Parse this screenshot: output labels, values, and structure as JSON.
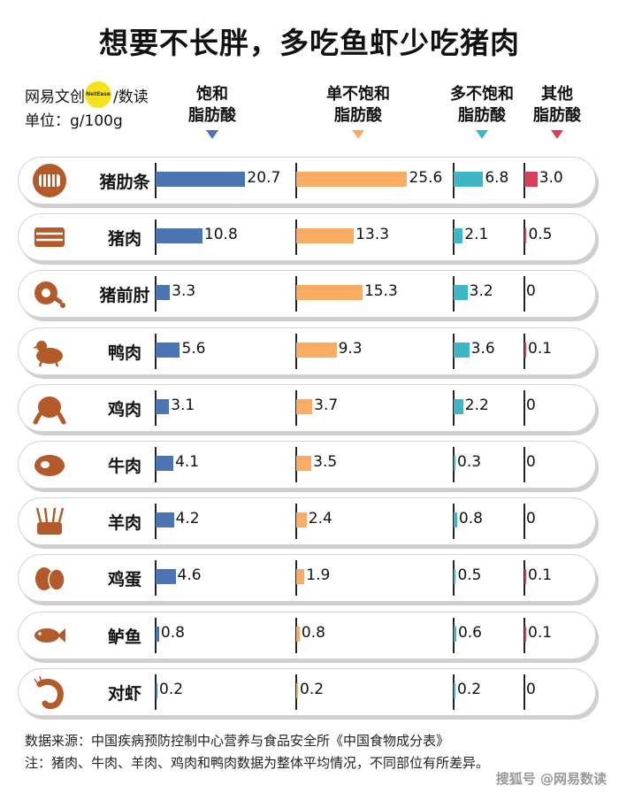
{
  "title": "想要不长胖，多吃鱼虾少吃猪肉",
  "brand": {
    "logo_left": "网易文创",
    "logo_dot": "NetEase",
    "logo_right": "/数读"
  },
  "unit_label": "单位：g/100g",
  "watermark": "搜狐号 @网易数读",
  "colors": {
    "saturated": "#4b74b5",
    "monounsaturated": "#f9ac62",
    "polyunsaturated": "#3fb6c6",
    "other": "#d8405a",
    "icon": "#b35a2a"
  },
  "chart_data": {
    "type": "bar",
    "unit": "g/100g",
    "series": [
      {
        "name": "饱和脂肪酸",
        "values": [
          20.7,
          10.8,
          3.3,
          5.6,
          3.1,
          4.1,
          4.2,
          4.6,
          0.8,
          0.2
        ]
      },
      {
        "name": "单不饱和脂肪酸",
        "values": [
          25.6,
          13.3,
          15.3,
          9.3,
          3.7,
          3.5,
          2.4,
          1.9,
          0.8,
          0.2
        ]
      },
      {
        "name": "多不饱和脂肪酸",
        "values": [
          6.8,
          2.1,
          3.2,
          3.6,
          2.2,
          0.3,
          0.8,
          0.5,
          0.6,
          0.2
        ]
      },
      {
        "name": "其他脂肪酸",
        "values": [
          3.0,
          0.5,
          0,
          0.1,
          0,
          0,
          0,
          0.1,
          0.1,
          0
        ]
      }
    ],
    "categories": [
      "猪肋条",
      "猪肉",
      "猪前肘",
      "鸭肉",
      "鸡肉",
      "牛肉",
      "羊肉",
      "鸡蛋",
      "鲈鱼",
      "对虾"
    ],
    "value_labels": [
      [
        "20.7",
        "25.6",
        "6.8",
        "3.0"
      ],
      [
        "10.8",
        "13.3",
        "2.1",
        "0.5"
      ],
      [
        "3.3",
        "15.3",
        "3.2",
        "0"
      ],
      [
        "5.6",
        "9.3",
        "3.6",
        "0.1"
      ],
      [
        "3.1",
        "3.7",
        "2.2",
        "0"
      ],
      [
        "4.1",
        "3.5",
        "0.3",
        "0"
      ],
      [
        "4.2",
        "2.4",
        "0.8",
        "0"
      ],
      [
        "4.6",
        "1.9",
        "0.5",
        "0.1"
      ],
      [
        "0.8",
        "0.8",
        "0.6",
        "0.1"
      ],
      [
        "0.2",
        "0.2",
        "0.2",
        "0"
      ]
    ],
    "icons": [
      "ribs-icon",
      "pork-belly-icon",
      "ham-hock-icon",
      "duck-icon",
      "chicken-icon",
      "steak-icon",
      "lamb-rack-icon",
      "eggs-icon",
      "fish-icon",
      "shrimp-icon"
    ]
  },
  "col_heads": [
    [
      "饱和",
      "脂肪酸"
    ],
    [
      "单不饱和",
      "脂肪酸"
    ],
    [
      "多不饱和",
      "脂肪酸"
    ],
    [
      "其他",
      "脂肪酸"
    ]
  ],
  "footer": {
    "source": "数据来源：中国疾病预防控制中心营养与食品安全所《中国食物成分表》",
    "note": "注：猪肉、牛肉、羊肉、鸡肉和鸭肉数据为整体平均情况，不同部位有所差异。"
  }
}
